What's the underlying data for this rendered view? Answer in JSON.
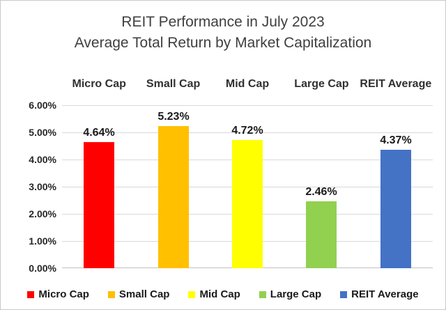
{
  "title": {
    "line1": "REIT Performance in July 2023",
    "line2": "Average Total Return by Market Capitalization"
  },
  "chart_data": {
    "type": "bar",
    "title": "REIT Performance in July 2023 - Average Total Return by Market Capitalization",
    "categories": [
      "Micro Cap",
      "Small Cap",
      "Mid Cap",
      "Large Cap",
      "REIT Average"
    ],
    "values": [
      4.64,
      5.23,
      4.72,
      2.46,
      4.37
    ],
    "value_labels": [
      "4.64%",
      "5.23%",
      "4.72%",
      "2.46%",
      "4.37%"
    ],
    "bar_colors": [
      "#FF0000",
      "#FFC000",
      "#FFFF00",
      "#92D050",
      "#4472C4"
    ],
    "xlabel": "",
    "ylabel": "",
    "ylim": [
      0,
      6
    ],
    "ytick_step": 1,
    "ytick_labels": [
      "0.00%",
      "1.00%",
      "2.00%",
      "3.00%",
      "4.00%",
      "5.00%",
      "6.00%"
    ],
    "grid": true,
    "category_axis_position": "top",
    "legend": {
      "position": "bottom",
      "entries": [
        "Micro Cap",
        "Small Cap",
        "Mid Cap",
        "Large Cap",
        "REIT Average"
      ]
    }
  },
  "colors": {
    "gridline": "#D9D9D9",
    "baseline": "#BFBFBF",
    "title_text": "#3F3F3F",
    "label_text": "#1A1A1A"
  }
}
